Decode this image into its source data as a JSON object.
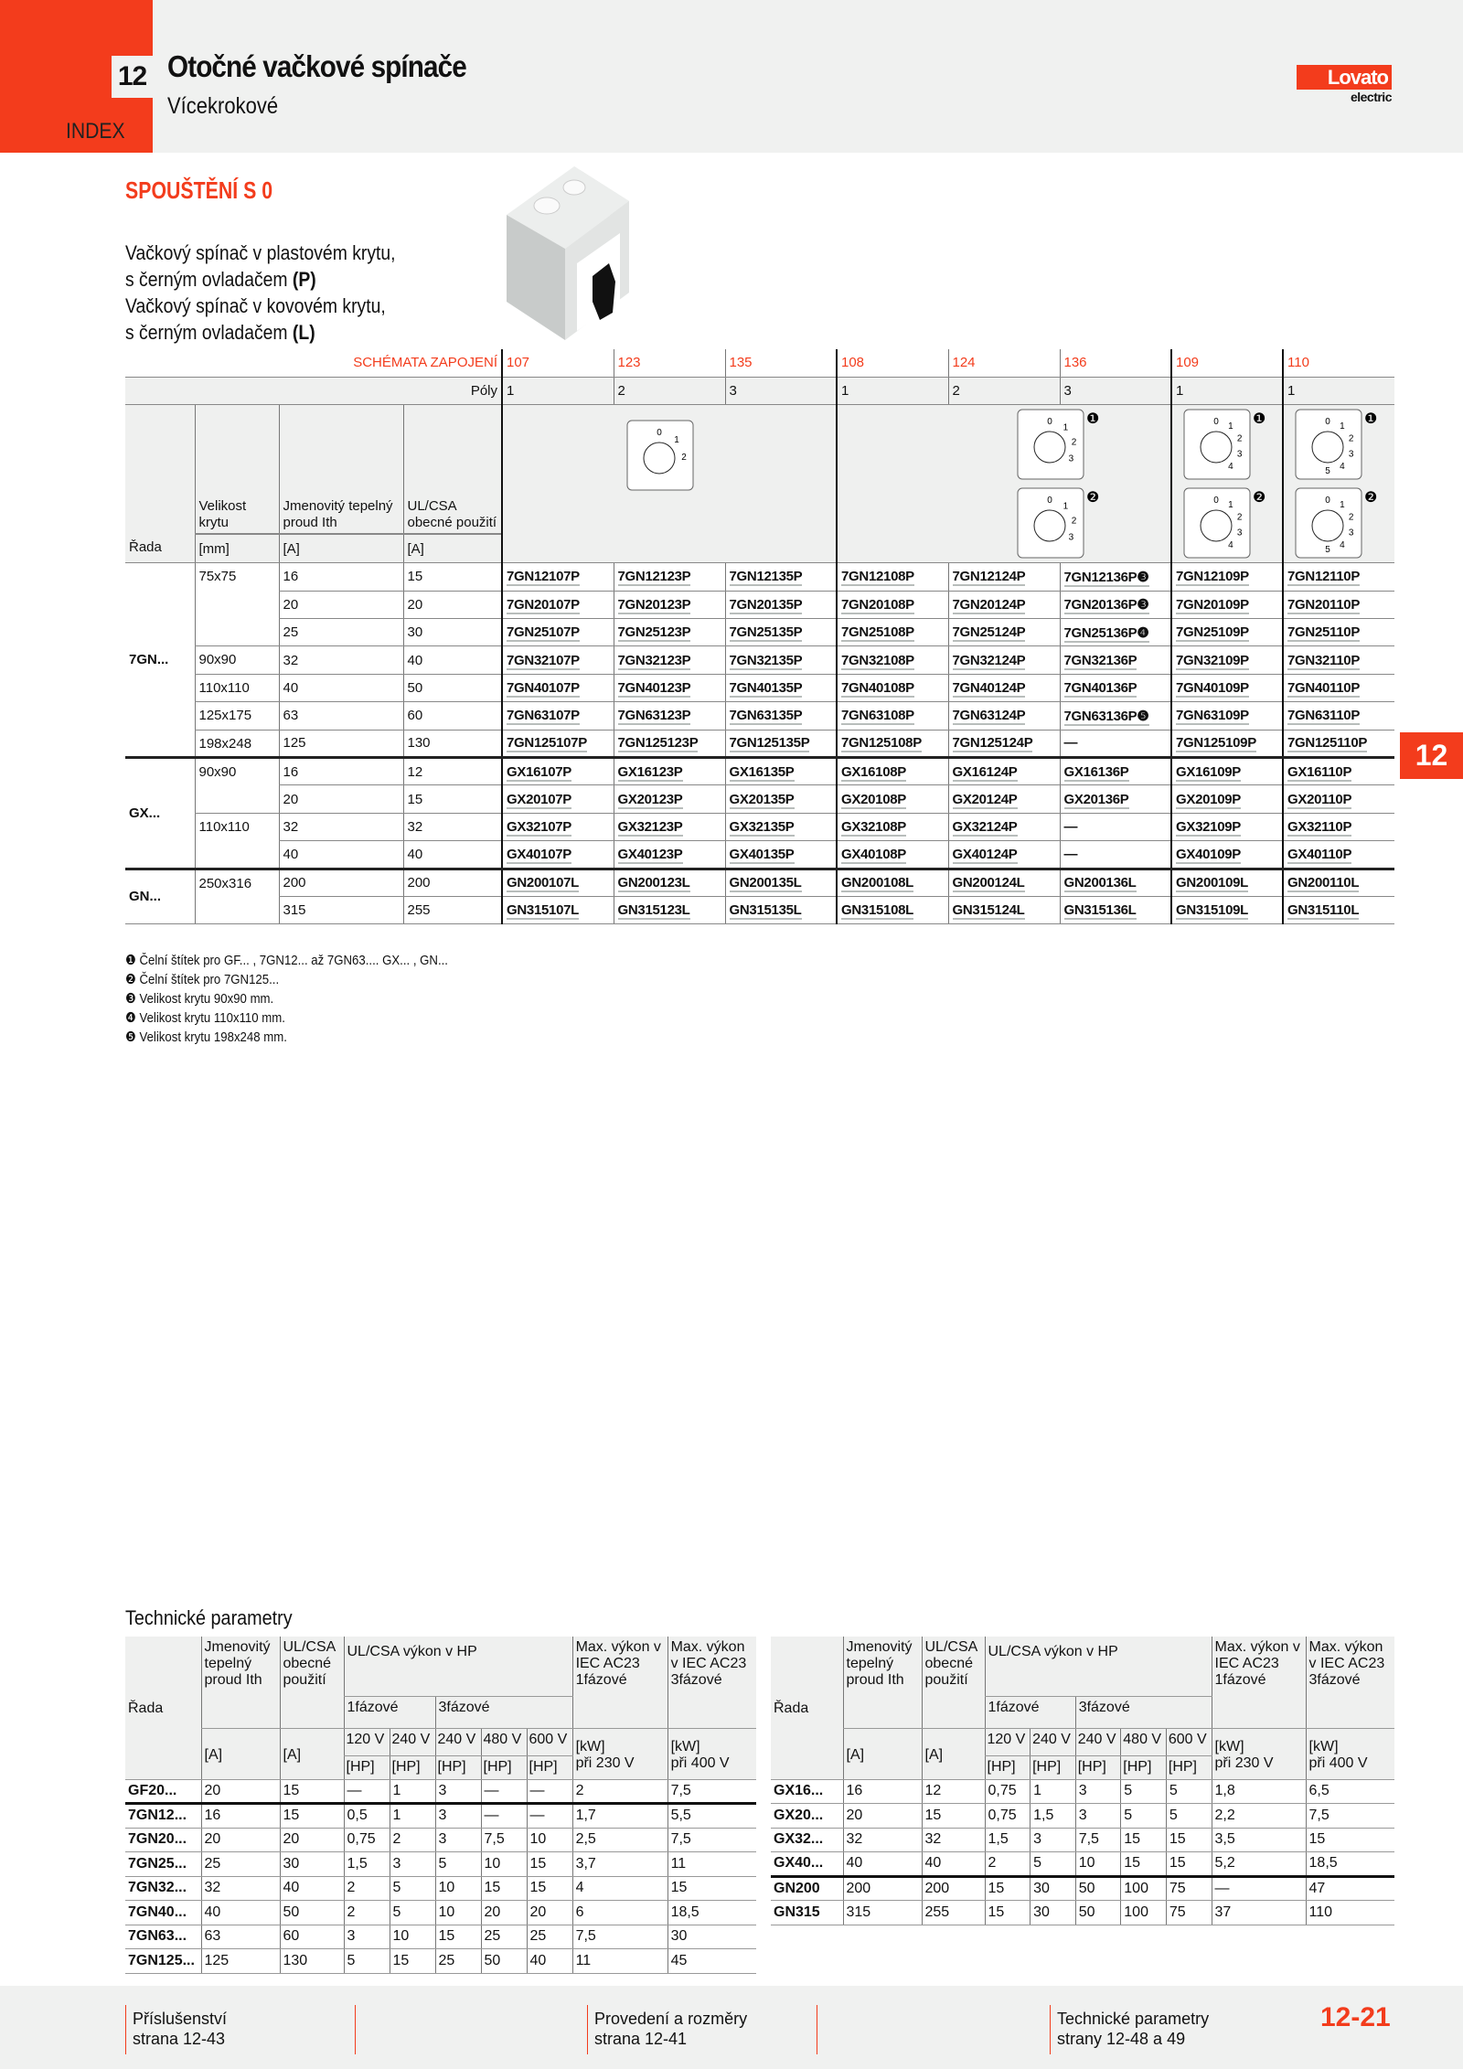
{
  "header": {
    "chapter": "12",
    "title": "Otočné vačkové spínače",
    "subtitle": "Vícekrokové",
    "index": "INDEX",
    "logo": {
      "brand": "Lovato",
      "sub": "electric"
    }
  },
  "section": {
    "title": "SPOUŠTĚNÍ S 0",
    "desc": [
      "Vačkový spínač v plastovém krytu,",
      "s černým ovladačem ",
      "(P)",
      "Vačkový spínač v kovovém krytu,",
      "s černým ovladačem ",
      "(L)"
    ]
  },
  "main": {
    "schema_label": "SCHÉMATA ZAPOJENÍ",
    "schemas": [
      "107",
      "123",
      "135",
      "108",
      "124",
      "136",
      "109",
      "110"
    ],
    "poles_label": "Póly",
    "poles": [
      "1",
      "2",
      "3",
      "1",
      "2",
      "3",
      "1",
      "1"
    ],
    "cols": [
      "Řada",
      "Velikost krytu",
      "Jmenovitý tepelný proud Ith",
      "UL/CSA obecné použití"
    ],
    "units": [
      "[mm]",
      "[A]",
      "[A]"
    ],
    "dials": {
      "a": [
        "0",
        "1",
        "2"
      ],
      "b1": [
        "0",
        "1",
        "2",
        "3"
      ],
      "b2": [
        "0",
        "1",
        "2",
        "3"
      ],
      "c1": [
        "0",
        "1",
        "2",
        "3",
        "4"
      ],
      "c2": [
        "0",
        "1",
        "2",
        "3",
        "4"
      ],
      "d1": [
        "0",
        "1",
        "2",
        "3",
        "4",
        "5"
      ],
      "d2": [
        "0",
        "1",
        "2",
        "3",
        "4",
        "5"
      ]
    },
    "dial_notes": [
      "❶",
      "❷"
    ],
    "groups": [
      {
        "series": "7GN...",
        "rows": [
          {
            "size": "75x75",
            "ith": "16",
            "ul": "15",
            "codes": [
              "7GN12107P",
              "7GN12123P",
              "7GN12135P",
              "7GN12108P",
              "7GN12124P",
              "7GN12136P❸",
              "7GN12109P",
              "7GN12110P"
            ]
          },
          {
            "size": "",
            "ith": "20",
            "ul": "20",
            "codes": [
              "7GN20107P",
              "7GN20123P",
              "7GN20135P",
              "7GN20108P",
              "7GN20124P",
              "7GN20136P❸",
              "7GN20109P",
              "7GN20110P"
            ]
          },
          {
            "size": "",
            "ith": "25",
            "ul": "30",
            "codes": [
              "7GN25107P",
              "7GN25123P",
              "7GN25135P",
              "7GN25108P",
              "7GN25124P",
              "7GN25136P❹",
              "7GN25109P",
              "7GN25110P"
            ]
          },
          {
            "size": "90x90",
            "ith": "32",
            "ul": "40",
            "codes": [
              "7GN32107P",
              "7GN32123P",
              "7GN32135P",
              "7GN32108P",
              "7GN32124P",
              "7GN32136P",
              "7GN32109P",
              "7GN32110P"
            ]
          },
          {
            "size": "110x110",
            "ith": "40",
            "ul": "50",
            "codes": [
              "7GN40107P",
              "7GN40123P",
              "7GN40135P",
              "7GN40108P",
              "7GN40124P",
              "7GN40136P",
              "7GN40109P",
              "7GN40110P"
            ]
          },
          {
            "size": "125x175",
            "ith": "63",
            "ul": "60",
            "codes": [
              "7GN63107P",
              "7GN63123P",
              "7GN63135P",
              "7GN63108P",
              "7GN63124P",
              "7GN63136P❺",
              "7GN63109P",
              "7GN63110P"
            ]
          },
          {
            "size": "198x248",
            "ith": "125",
            "ul": "130",
            "codes": [
              "7GN125107P",
              "7GN125123P",
              "7GN125135P",
              "7GN125108P",
              "7GN125124P",
              "—",
              "7GN125109P",
              "7GN125110P"
            ]
          }
        ]
      },
      {
        "series": "GX...",
        "rows": [
          {
            "size": "90x90",
            "ith": "16",
            "ul": "12",
            "codes": [
              "GX16107P",
              "GX16123P",
              "GX16135P",
              "GX16108P",
              "GX16124P",
              "GX16136P",
              "GX16109P",
              "GX16110P"
            ]
          },
          {
            "size": "",
            "ith": "20",
            "ul": "15",
            "codes": [
              "GX20107P",
              "GX20123P",
              "GX20135P",
              "GX20108P",
              "GX20124P",
              "GX20136P",
              "GX20109P",
              "GX20110P"
            ]
          },
          {
            "size": "110x110",
            "ith": "32",
            "ul": "32",
            "codes": [
              "GX32107P",
              "GX32123P",
              "GX32135P",
              "GX32108P",
              "GX32124P",
              "—",
              "GX32109P",
              "GX32110P"
            ]
          },
          {
            "size": "",
            "ith": "40",
            "ul": "40",
            "codes": [
              "GX40107P",
              "GX40123P",
              "GX40135P",
              "GX40108P",
              "GX40124P",
              "—",
              "GX40109P",
              "GX40110P"
            ]
          }
        ]
      },
      {
        "series": "GN...",
        "rows": [
          {
            "size": "250x316",
            "ith": "200",
            "ul": "200",
            "codes": [
              "GN200107L",
              "GN200123L",
              "GN200135L",
              "GN200108L",
              "GN200124L",
              "GN200136L",
              "GN200109L",
              "GN200110L"
            ]
          },
          {
            "size": "",
            "ith": "315",
            "ul": "255",
            "codes": [
              "GN315107L",
              "GN315123L",
              "GN315135L",
              "GN315108L",
              "GN315124L",
              "GN315136L",
              "GN315109L",
              "GN315110L"
            ]
          }
        ]
      }
    ]
  },
  "footnotes": [
    "❶ Čelní štítek pro GF... , 7GN12... až 7GN63.... GX... , GN...",
    "❷ Čelní štítek pro 7GN125...",
    "❸ Velikost krytu 90x90 mm.",
    "❹ Velikost krytu 110x110 mm.",
    "❺ Velikost krytu 198x248 mm."
  ],
  "side_tab": "12",
  "tech": {
    "title": "Technické parametry",
    "head": {
      "rada": "Řada",
      "ith": "Jmenovitý tepelný proud Ith",
      "ul": "UL/CSA obecné použití",
      "hp": "UL/CSA výkon v HP",
      "ph1": "1fázové",
      "ph3": "3fázové",
      "volts": [
        "120 V",
        "240 V",
        "240 V",
        "480 V",
        "600 V"
      ],
      "hpu": "[HP]",
      "a": "[A]",
      "kw1": "Max. výkon v IEC AC23 1fázové",
      "kw3": "Max. výkon v IEC AC23 3fázové",
      "kwu": "[kW]",
      "v230": "při 230 V",
      "v400": "při 400 V"
    },
    "left": [
      [
        "GF20...",
        "20",
        "15",
        "—",
        "1",
        "3",
        "—",
        "—",
        "2",
        "7,5"
      ],
      [
        "7GN12...",
        "16",
        "15",
        "0,5",
        "1",
        "3",
        "—",
        "—",
        "1,7",
        "5,5"
      ],
      [
        "7GN20...",
        "20",
        "20",
        "0,75",
        "2",
        "3",
        "7,5",
        "10",
        "2,5",
        "7,5"
      ],
      [
        "7GN25...",
        "25",
        "30",
        "1,5",
        "3",
        "5",
        "10",
        "15",
        "3,7",
        "11"
      ],
      [
        "7GN32...",
        "32",
        "40",
        "2",
        "5",
        "10",
        "15",
        "15",
        "4",
        "15"
      ],
      [
        "7GN40...",
        "40",
        "50",
        "2",
        "5",
        "10",
        "20",
        "20",
        "6",
        "18,5"
      ],
      [
        "7GN63...",
        "63",
        "60",
        "3",
        "10",
        "15",
        "25",
        "25",
        "7,5",
        "30"
      ],
      [
        "7GN125...",
        "125",
        "130",
        "5",
        "15",
        "25",
        "50",
        "40",
        "11",
        "45"
      ]
    ],
    "right": [
      [
        "GX16...",
        "16",
        "12",
        "0,75",
        "1",
        "3",
        "5",
        "5",
        "1,8",
        "6,5"
      ],
      [
        "GX20...",
        "20",
        "15",
        "0,75",
        "1,5",
        "3",
        "5",
        "5",
        "2,2",
        "7,5"
      ],
      [
        "GX32...",
        "32",
        "32",
        "1,5",
        "3",
        "7,5",
        "15",
        "15",
        "3,5",
        "15"
      ],
      [
        "GX40...",
        "40",
        "40",
        "2",
        "5",
        "10",
        "15",
        "15",
        "5,2",
        "18,5"
      ],
      [
        "GN200",
        "200",
        "200",
        "15",
        "30",
        "50",
        "100",
        "75",
        "—",
        "47"
      ],
      [
        "GN315",
        "315",
        "255",
        "15",
        "30",
        "50",
        "100",
        "75",
        "37",
        "110"
      ]
    ]
  },
  "footer": {
    "links": [
      [
        "Příslušenství",
        "strana 12-43"
      ],
      [
        "Provedení a rozměry",
        "strana 12-41"
      ],
      [
        "Technické parametry",
        "strany 12-48 a 49"
      ]
    ],
    "page": "12-21"
  },
  "colors": {
    "accent": "#f33c1c",
    "band": "#f0f1f0"
  }
}
